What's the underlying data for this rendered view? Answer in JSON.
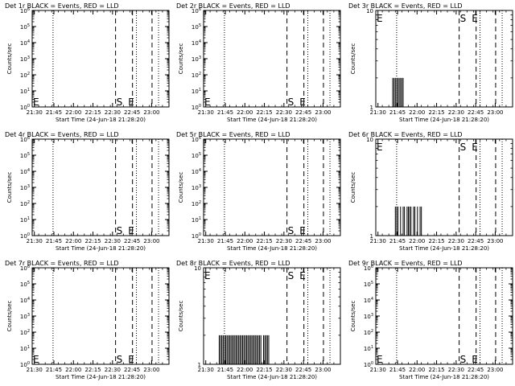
{
  "time_ticks": [
    "21:30",
    "21:45",
    "22:00",
    "22:15",
    "22:30",
    "22:45",
    "23:00"
  ],
  "x_range_min": [
    0,
    105
  ],
  "ylabel": "Counts/sec",
  "xlabel": "Start Time (24-Jun-18 21:28:20)",
  "markers": {
    "dotted_min": [
      16,
      80,
      97
    ],
    "dashed_min": [
      64,
      77,
      92
    ],
    "S": "S",
    "E": "E"
  },
  "chart_data": [
    {
      "type": "line",
      "title": "Det 1r BLACK = Events, RED = LLD",
      "scale": "log",
      "y_tick_labels": [
        "10^0",
        "10^1",
        "10^2",
        "10^3",
        "10^4",
        "10^5",
        "10^6"
      ],
      "ylim": [
        1,
        1000000
      ],
      "annotations": [
        {
          "text": "E",
          "x_min": 0
        },
        {
          "text": "S",
          "x_min": 64
        },
        {
          "text": "E",
          "x_min": 73
        }
      ],
      "events": []
    },
    {
      "type": "line",
      "title": "Det 2r BLACK = Events, RED = LLD",
      "scale": "log",
      "y_tick_labels": [
        "10^0",
        "10^1",
        "10^2",
        "10^3",
        "10^4",
        "10^5",
        "10^6"
      ],
      "ylim": [
        1,
        1000000
      ],
      "annotations": [
        {
          "text": "E",
          "x_min": 0
        },
        {
          "text": "S",
          "x_min": 64
        },
        {
          "text": "E",
          "x_min": 73
        }
      ],
      "events": []
    },
    {
      "type": "line",
      "title": "Det 3r BLACK = Events, RED = LLD",
      "scale": "log",
      "y_tick_labels": [
        "1",
        "10"
      ],
      "ylim": [
        1,
        10
      ],
      "annotations": [
        {
          "text": "E",
          "x_min": 0
        },
        {
          "text": "S",
          "x_min": 64
        },
        {
          "text": "E",
          "x_min": 73
        }
      ],
      "events": [
        {
          "x": 13,
          "y": 2
        },
        {
          "x": 14,
          "y": 2
        },
        {
          "x": 15,
          "y": 2
        },
        {
          "x": 16,
          "y": 2
        },
        {
          "x": 17,
          "y": 2
        },
        {
          "x": 18,
          "y": 2
        },
        {
          "x": 19,
          "y": 2
        },
        {
          "x": 20,
          "y": 2
        },
        {
          "x": 21,
          "y": 2
        }
      ]
    },
    {
      "type": "line",
      "title": "Det 4r BLACK = Events, RED = LLD",
      "scale": "log",
      "y_tick_labels": [
        "10^0",
        "10^1",
        "10^2",
        "10^3",
        "10^4",
        "10^5",
        "10^6"
      ],
      "ylim": [
        1,
        1000000
      ],
      "annotations": [
        {
          "text": "S",
          "x_min": 64
        },
        {
          "text": "E",
          "x_min": 73
        }
      ],
      "events": []
    },
    {
      "type": "line",
      "title": "Det 5r BLACK = Events, RED = LLD",
      "scale": "log",
      "y_tick_labels": [
        "10^0",
        "10^1",
        "10^2",
        "10^3",
        "10^4",
        "10^5",
        "10^6"
      ],
      "ylim": [
        1,
        1000000
      ],
      "annotations": [
        {
          "text": "S",
          "x_min": 64
        },
        {
          "text": "E",
          "x_min": 73
        }
      ],
      "events": []
    },
    {
      "type": "line",
      "title": "Det 6r BLACK = Events, RED = LLD",
      "scale": "log",
      "y_tick_labels": [
        "1",
        "10"
      ],
      "ylim": [
        1,
        10
      ],
      "annotations": [
        {
          "text": "E",
          "x_min": 0
        },
        {
          "text": "S",
          "x_min": 64
        },
        {
          "text": "E",
          "x_min": 73
        }
      ],
      "events": [
        {
          "x": 15,
          "y": 2
        },
        {
          "x": 16,
          "y": 2
        },
        {
          "x": 17,
          "y": 2
        },
        {
          "x": 19,
          "y": 2
        },
        {
          "x": 21,
          "y": 2
        },
        {
          "x": 22,
          "y": 2
        },
        {
          "x": 24,
          "y": 2
        },
        {
          "x": 25,
          "y": 2
        },
        {
          "x": 26,
          "y": 2
        },
        {
          "x": 27,
          "y": 2
        },
        {
          "x": 29,
          "y": 2
        },
        {
          "x": 30,
          "y": 2
        },
        {
          "x": 32,
          "y": 2
        },
        {
          "x": 34,
          "y": 2
        },
        {
          "x": 35,
          "y": 2
        }
      ]
    },
    {
      "type": "line",
      "title": "Det 7r BLACK = Events, RED = LLD",
      "scale": "log",
      "y_tick_labels": [
        "10^0",
        "10^1",
        "10^2",
        "10^3",
        "10^4",
        "10^5",
        "10^6"
      ],
      "ylim": [
        1,
        1000000
      ],
      "annotations": [
        {
          "text": "E",
          "x_min": 0
        },
        {
          "text": "S",
          "x_min": 64
        },
        {
          "text": "E",
          "x_min": 73
        }
      ],
      "events": []
    },
    {
      "type": "line",
      "title": "Det 8r BLACK = Events, RED = LLD",
      "scale": "log",
      "y_tick_labels": [
        "1",
        "10"
      ],
      "ylim": [
        1,
        10
      ],
      "annotations": [
        {
          "text": "E",
          "x_min": 0
        },
        {
          "text": "S",
          "x_min": 64
        },
        {
          "text": "E",
          "x_min": 73
        }
      ],
      "events": [
        {
          "x": 12,
          "y": 2
        },
        {
          "x": 13,
          "y": 2
        },
        {
          "x": 14,
          "y": 2
        },
        {
          "x": 15,
          "y": 2
        },
        {
          "x": 16,
          "y": 2
        },
        {
          "x": 17,
          "y": 2
        },
        {
          "x": 18,
          "y": 2
        },
        {
          "x": 19,
          "y": 2
        },
        {
          "x": 20,
          "y": 2
        },
        {
          "x": 21,
          "y": 2
        },
        {
          "x": 22,
          "y": 2
        },
        {
          "x": 23,
          "y": 2
        },
        {
          "x": 24,
          "y": 2
        },
        {
          "x": 25,
          "y": 2
        },
        {
          "x": 26,
          "y": 2
        },
        {
          "x": 27,
          "y": 2
        },
        {
          "x": 28,
          "y": 2
        },
        {
          "x": 29,
          "y": 2
        },
        {
          "x": 30,
          "y": 2
        },
        {
          "x": 31,
          "y": 2
        },
        {
          "x": 32,
          "y": 2
        },
        {
          "x": 33,
          "y": 2
        },
        {
          "x": 34,
          "y": 2
        },
        {
          "x": 35,
          "y": 2
        },
        {
          "x": 36,
          "y": 2
        },
        {
          "x": 37,
          "y": 2
        },
        {
          "x": 38,
          "y": 2
        },
        {
          "x": 39,
          "y": 2
        },
        {
          "x": 40,
          "y": 2
        },
        {
          "x": 41,
          "y": 2
        },
        {
          "x": 42,
          "y": 2
        },
        {
          "x": 43,
          "y": 2
        },
        {
          "x": 44,
          "y": 2
        },
        {
          "x": 46,
          "y": 2
        },
        {
          "x": 47,
          "y": 2
        },
        {
          "x": 48,
          "y": 2
        },
        {
          "x": 49,
          "y": 2
        },
        {
          "x": 50,
          "y": 2
        }
      ]
    },
    {
      "type": "line",
      "title": "Det 9r BLACK = Events, RED = LLD",
      "scale": "log",
      "y_tick_labels": [
        "10^0",
        "10^1",
        "10^2",
        "10^3",
        "10^4",
        "10^5",
        "10^6"
      ],
      "ylim": [
        1,
        1000000
      ],
      "annotations": [
        {
          "text": "E",
          "x_min": 0
        },
        {
          "text": "S",
          "x_min": 64
        },
        {
          "text": "E",
          "x_min": 73
        }
      ],
      "events": []
    }
  ]
}
